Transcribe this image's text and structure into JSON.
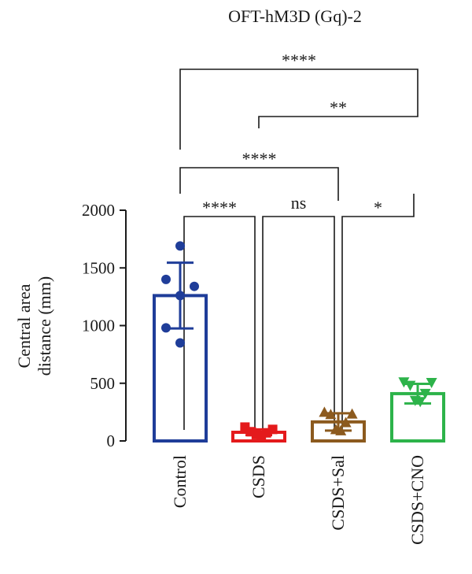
{
  "chart_data": {
    "type": "bar",
    "title": "OFT-hM3D (Gq)-2",
    "ylabel_lines": [
      "Central area",
      "distance (mm)"
    ],
    "ylim": [
      0,
      2000
    ],
    "yticks": [
      0,
      500,
      1000,
      1500,
      2000
    ],
    "categories": [
      "Control",
      "CSDS",
      "CSDS+Sal",
      "CSDS+CNO"
    ],
    "series": [
      {
        "category": "Control",
        "mean": 1260,
        "sd": 285,
        "color": "#1f3d99",
        "marker": "circle",
        "points": [
          1690,
          1400,
          1340,
          1260,
          980,
          850
        ]
      },
      {
        "category": "CSDS",
        "mean": 75,
        "sd": 25,
        "color": "#e41a1c",
        "marker": "square",
        "points": [
          120,
          100,
          80,
          70,
          55,
          45
        ]
      },
      {
        "category": "CSDS+Sal",
        "mean": 165,
        "sd": 75,
        "color": "#8c5a1e",
        "marker": "triangle-up",
        "points": [
          250,
          235,
          230,
          160,
          100,
          90
        ]
      },
      {
        "category": "CSDS+CNO",
        "mean": 410,
        "sd": 85,
        "color": "#2db34a",
        "marker": "triangle-down",
        "points": [
          510,
          505,
          480,
          410,
          350,
          340
        ]
      }
    ],
    "comparisons": [
      {
        "from": 0,
        "to": 3,
        "label": "****"
      },
      {
        "from": 1,
        "to": 3,
        "label": "**"
      },
      {
        "from": 0,
        "to": 2,
        "label": "****"
      },
      {
        "from": 0,
        "to": 1,
        "label": "****"
      },
      {
        "from": 1,
        "to": 2,
        "label": "ns"
      },
      {
        "from": 2,
        "to": 3,
        "label": "*"
      }
    ]
  }
}
